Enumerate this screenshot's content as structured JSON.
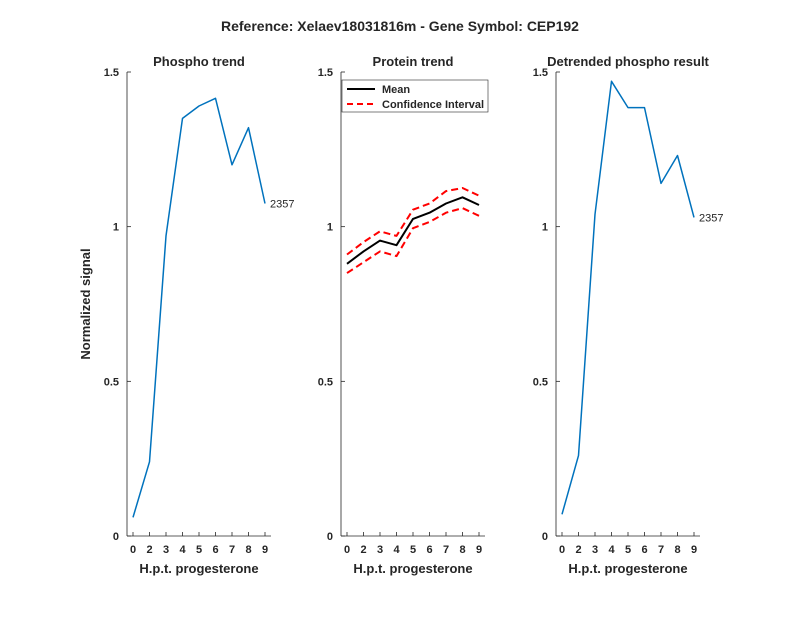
{
  "figure": {
    "suptitle": "Reference:  Xelaev18031816m - Gene Symbol:  CEP192",
    "ylabel": "Normalized signal"
  },
  "chart_data": [
    {
      "type": "line",
      "title": "Phospho trend",
      "xlabel": "H.p.t. progesterone",
      "ylabel": "Normalized signal",
      "categories": [
        "0",
        "2",
        "3",
        "4",
        "5",
        "6",
        "7",
        "8",
        "9"
      ],
      "ylim": [
        0,
        1.5
      ],
      "yticks": [
        "0",
        "0.5",
        "1",
        "1.5"
      ],
      "grid": false,
      "series": [
        {
          "values": [
            0.06,
            0.24,
            0.97,
            1.35,
            1.39,
            1.415,
            1.2,
            1.32,
            1.075
          ],
          "color": "#0072BD",
          "style": "solid"
        }
      ],
      "annotation": "2357"
    },
    {
      "type": "line",
      "title": "Protein trend",
      "xlabel": "H.p.t. progesterone",
      "categories": [
        "0",
        "2",
        "3",
        "4",
        "5",
        "6",
        "7",
        "8",
        "9"
      ],
      "ylim": [
        0,
        1.5
      ],
      "yticks": [
        "0",
        "0.5",
        "1",
        "1.5"
      ],
      "grid": false,
      "legend_position": "top-left",
      "series": [
        {
          "name": "Mean",
          "values": [
            0.88,
            0.92,
            0.955,
            0.94,
            1.025,
            1.045,
            1.075,
            1.095,
            1.07
          ],
          "color": "#000000",
          "style": "solid"
        },
        {
          "name": "Confidence Interval",
          "values": [
            0.91,
            0.95,
            0.985,
            0.97,
            1.055,
            1.075,
            1.115,
            1.125,
            1.1
          ],
          "color": "#FF0000",
          "style": "dashed"
        },
        {
          "values": [
            0.85,
            0.885,
            0.92,
            0.905,
            0.995,
            1.015,
            1.045,
            1.06,
            1.035
          ],
          "color": "#FF0000",
          "style": "dashed"
        }
      ]
    },
    {
      "type": "line",
      "title": "Detrended phospho result",
      "xlabel": "H.p.t. progesterone",
      "categories": [
        "0",
        "2",
        "3",
        "4",
        "5",
        "6",
        "7",
        "8",
        "9"
      ],
      "ylim": [
        0,
        1.5
      ],
      "yticks": [
        "0",
        "0.5",
        "1",
        "1.5"
      ],
      "grid": false,
      "series": [
        {
          "values": [
            0.07,
            0.26,
            1.04,
            1.47,
            1.385,
            1.385,
            1.14,
            1.23,
            1.03
          ],
          "color": "#0072BD",
          "style": "solid"
        }
      ],
      "annotation": "2357"
    }
  ]
}
